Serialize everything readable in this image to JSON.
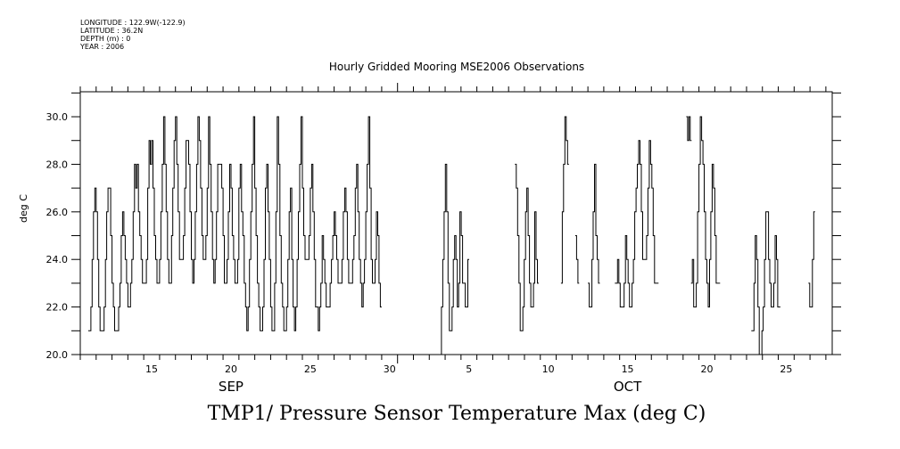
{
  "header": {
    "longitude": "LONGITUDE : 122.9W(-122.9)",
    "latitude": "LATITUDE : 36.2N",
    "depth": "DEPTH (m) : 0",
    "year": "YEAR : 2006"
  },
  "chart_data": {
    "type": "line",
    "title": "Hourly Gridded Mooring MSE2006 Observations",
    "xlabel": "",
    "ylabel": "deg C",
    "bottom_title": "TMP1/ Pressure Sensor Temperature Max (deg C)",
    "ylim": [
      20.0,
      31.05
    ],
    "yticks": [
      20.0,
      22.0,
      24.0,
      26.0,
      28.0,
      30.0
    ],
    "ytick_labels": [
      "20.0",
      "22.0",
      "24.0",
      "26.0",
      "28.0",
      "30.0"
    ],
    "x_units": "days since 2006-09-11 00:00",
    "xlim": [
      0,
      47.4
    ],
    "xtick_labels": [
      {
        "day": 4.5,
        "label": "15"
      },
      {
        "day": 9.5,
        "label": "20"
      },
      {
        "day": 14.5,
        "label": "25"
      },
      {
        "day": 19.5,
        "label": "30"
      },
      {
        "day": 24.5,
        "label": "5"
      },
      {
        "day": 29.5,
        "label": "10"
      },
      {
        "day": 34.5,
        "label": "15"
      },
      {
        "day": 39.5,
        "label": "20"
      },
      {
        "day": 44.5,
        "label": "25"
      }
    ],
    "month_labels": [
      {
        "day": 9.5,
        "label": "SEP"
      },
      {
        "day": 34.5,
        "label": "OCT"
      }
    ],
    "month_break_day": 20.0,
    "sample_step_hours": 2,
    "series": [
      {
        "name": "TMP1",
        "start_day": 0.5,
        "values": [
          21,
          21,
          22,
          24,
          26,
          27,
          26,
          24,
          22,
          21,
          21,
          21,
          22,
          24,
          26,
          27,
          27,
          25,
          23,
          22,
          21,
          21,
          21,
          22,
          23,
          25,
          26,
          25,
          24,
          23,
          22,
          22,
          23,
          24,
          26,
          28,
          27,
          28,
          26,
          25,
          24,
          23,
          23,
          23,
          24,
          27,
          29,
          28,
          29,
          27,
          25,
          24,
          23,
          23,
          24,
          26,
          28,
          30,
          28,
          26,
          24,
          23,
          23,
          25,
          27,
          29,
          30,
          28,
          26,
          24,
          24,
          24,
          25,
          27,
          29,
          29,
          28,
          26,
          24,
          23,
          24,
          26,
          28,
          30,
          29,
          27,
          25,
          24,
          24,
          25,
          27,
          30,
          28,
          26,
          24,
          23,
          24,
          26,
          28,
          28,
          28,
          27,
          25,
          23,
          23,
          24,
          26,
          28,
          27,
          25,
          24,
          23,
          23,
          24,
          27,
          28,
          26,
          25,
          23,
          22,
          21,
          22,
          24,
          26,
          28,
          30,
          27,
          25,
          23,
          22,
          21,
          21,
          22,
          24,
          27,
          28,
          26,
          24,
          22,
          21,
          21,
          23,
          26,
          30,
          28,
          25,
          23,
          22,
          21,
          21,
          22,
          24,
          26,
          27,
          24,
          22,
          21,
          22,
          24,
          26,
          28,
          30,
          27,
          25,
          24,
          24,
          24,
          25,
          27,
          28,
          26,
          24,
          22,
          22,
          21,
          22,
          23,
          25,
          24,
          23,
          22,
          22,
          22,
          23,
          24,
          25,
          26,
          25,
          24,
          23,
          23,
          23,
          24,
          26,
          27,
          26,
          24,
          23,
          23,
          23,
          24,
          25,
          27,
          28,
          26,
          24,
          23,
          22,
          23,
          24,
          26,
          28,
          30,
          27,
          24,
          23,
          23,
          24,
          26,
          25,
          23,
          22
        ]
      },
      {
        "name": "TMP1",
        "start_day": 22.6,
        "values": [
          20,
          20,
          22,
          24,
          26,
          28,
          26,
          23,
          21,
          21,
          22,
          24,
          25,
          24,
          22,
          23,
          26,
          25,
          23,
          23,
          22,
          22,
          24
        ]
      },
      {
        "name": "TMP1",
        "start_day": 27.4,
        "values": [
          28,
          27,
          25,
          23,
          21,
          21,
          22,
          24,
          26,
          27,
          25,
          23,
          22,
          22,
          23,
          26,
          24,
          23
        ]
      },
      {
        "name": "TMP1",
        "start_day": 30.3,
        "values": [
          23,
          26,
          28,
          30,
          29,
          28
        ]
      },
      {
        "name": "TMP1",
        "start_day": 31.2,
        "values": [
          25,
          24,
          23
        ]
      },
      {
        "name": "TMP1",
        "start_day": 32.0,
        "values": [
          23,
          22,
          22,
          24,
          26,
          28,
          25,
          24,
          23
        ]
      },
      {
        "name": "TMP1",
        "start_day": 33.7,
        "values": [
          23,
          23,
          24,
          23,
          22,
          22,
          22,
          23,
          25,
          24,
          23,
          22,
          22,
          23,
          24,
          26,
          27,
          28,
          29,
          28,
          26,
          24,
          24,
          24,
          25,
          27,
          29,
          28,
          27,
          25,
          23,
          23,
          23
        ]
      },
      {
        "name": "TMP1",
        "start_day": 38.2,
        "values": [
          30,
          29,
          30,
          29
        ]
      },
      {
        "name": "TMP1",
        "start_day": 38.5,
        "values": [
          23,
          24,
          22,
          22,
          23,
          26,
          28,
          30,
          29,
          28,
          26,
          24,
          23,
          22,
          24,
          26,
          28,
          27,
          25,
          23,
          23,
          23
        ]
      },
      {
        "name": "TMP1",
        "start_day": 42.3,
        "values": [
          21,
          21,
          23,
          25,
          24,
          22,
          20,
          20,
          21,
          22,
          24,
          26,
          26,
          24,
          23,
          22,
          22,
          23,
          25,
          24,
          22,
          22
        ]
      },
      {
        "name": "TMP1",
        "start_day": 45.9,
        "values": [
          23,
          22,
          22,
          24,
          26
        ]
      }
    ]
  }
}
